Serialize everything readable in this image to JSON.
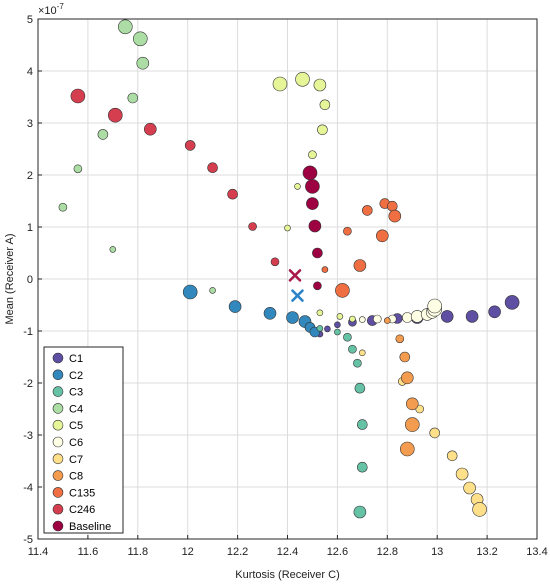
{
  "chart_data": {
    "type": "scatter",
    "title": "",
    "xlabel": "Kurtosis (Receiver C)",
    "ylabel": "Mean (Receiver A)",
    "y_exponent_label": "×10",
    "y_exponent_power": "-7",
    "xlim": [
      11.4,
      13.4
    ],
    "ylim": [
      -5,
      5
    ],
    "x_ticks": [
      "11.4",
      "11.6",
      "11.8",
      "12",
      "12.2",
      "12.4",
      "12.6",
      "12.8",
      "13",
      "13.2",
      "13.4"
    ],
    "y_ticks": [
      "-5",
      "-4",
      "-3",
      "-2",
      "-1",
      "0",
      "1",
      "2",
      "3",
      "4",
      "5"
    ],
    "grid": true,
    "legend_position": "bottom-left",
    "series": [
      {
        "name": "C1",
        "color": "#5e4fa2",
        "points": [
          [
            12.53,
            -1.06
          ],
          [
            12.56,
            -0.96
          ],
          [
            12.6,
            -0.88
          ],
          [
            12.66,
            -0.83
          ],
          [
            12.74,
            -0.8
          ],
          [
            12.84,
            -0.76
          ],
          [
            12.92,
            -0.74
          ],
          [
            13.04,
            -0.72
          ],
          [
            13.14,
            -0.72
          ],
          [
            13.23,
            -0.63
          ],
          [
            13.3,
            -0.45
          ]
        ],
        "sizes": [
          3,
          3,
          3,
          4,
          5,
          5,
          6,
          6,
          6,
          6,
          7
        ]
      },
      {
        "name": "C2",
        "color": "#3288bd",
        "points": [
          [
            12.01,
            -0.25
          ],
          [
            12.19,
            -0.53
          ],
          [
            12.33,
            -0.66
          ],
          [
            12.42,
            -0.74
          ],
          [
            12.47,
            -0.82
          ],
          [
            12.49,
            -0.93
          ],
          [
            12.51,
            -1.02
          ]
        ],
        "sizes": [
          7,
          6,
          6,
          6,
          6,
          5,
          5
        ]
      },
      {
        "name": "C3",
        "color": "#66c2a5",
        "points": [
          [
            12.53,
            -0.95
          ],
          [
            12.6,
            -1.02
          ],
          [
            12.64,
            -1.12
          ],
          [
            12.66,
            -1.35
          ],
          [
            12.68,
            -1.62
          ],
          [
            12.69,
            -2.1
          ],
          [
            12.7,
            -2.8
          ],
          [
            12.7,
            -3.62
          ],
          [
            12.69,
            -4.48
          ]
        ],
        "sizes": [
          3,
          3,
          4,
          4,
          4,
          5,
          5,
          5,
          6
        ]
      },
      {
        "name": "C4",
        "color": "#abdda4",
        "points": [
          [
            11.75,
            4.85
          ],
          [
            11.81,
            4.62
          ],
          [
            11.82,
            4.15
          ],
          [
            11.78,
            3.48
          ],
          [
            11.66,
            2.78
          ],
          [
            11.56,
            2.12
          ],
          [
            11.5,
            1.38
          ],
          [
            11.7,
            0.57
          ],
          [
            12.1,
            -0.22
          ]
        ],
        "sizes": [
          7,
          7,
          6,
          5,
          5,
          4,
          4,
          3,
          3
        ]
      },
      {
        "name": "C5",
        "color": "#e6f598",
        "points": [
          [
            12.37,
            3.75
          ],
          [
            12.46,
            3.84
          ],
          [
            12.53,
            3.73
          ],
          [
            12.55,
            3.35
          ],
          [
            12.54,
            2.87
          ],
          [
            12.5,
            2.39
          ],
          [
            12.44,
            1.78
          ],
          [
            12.4,
            0.98
          ],
          [
            12.53,
            -0.65
          ],
          [
            12.61,
            -0.72
          ],
          [
            12.66,
            -0.77
          ]
        ],
        "sizes": [
          7,
          7,
          6,
          5,
          5,
          4,
          3,
          3,
          3,
          3,
          3
        ]
      },
      {
        "name": "C6",
        "color": "#fefee4",
        "points": [
          [
            12.7,
            -0.78
          ],
          [
            12.76,
            -0.77
          ],
          [
            12.82,
            -0.77
          ],
          [
            12.88,
            -0.74
          ],
          [
            12.92,
            -0.72
          ],
          [
            12.96,
            -0.68
          ],
          [
            12.98,
            -0.64
          ],
          [
            12.99,
            -0.58
          ],
          [
            12.99,
            -0.52
          ]
        ],
        "sizes": [
          3,
          4,
          4,
          5,
          6,
          6,
          6,
          7,
          7
        ]
      },
      {
        "name": "C7",
        "color": "#fee08b",
        "points": [
          [
            12.7,
            -1.42
          ],
          [
            12.86,
            -1.97
          ],
          [
            12.93,
            -2.5
          ],
          [
            12.99,
            -2.96
          ],
          [
            13.06,
            -3.4
          ],
          [
            13.1,
            -3.75
          ],
          [
            13.13,
            -4.02
          ],
          [
            13.16,
            -4.24
          ],
          [
            13.17,
            -4.43
          ]
        ],
        "sizes": [
          3,
          4,
          4,
          5,
          5,
          6,
          6,
          6,
          7
        ]
      },
      {
        "name": "C8",
        "color": "#f39c50",
        "points": [
          [
            12.8,
            -0.8
          ],
          [
            12.85,
            -1.15
          ],
          [
            12.87,
            -1.5
          ],
          [
            12.88,
            -1.9
          ],
          [
            12.9,
            -2.4
          ],
          [
            12.9,
            -2.8
          ],
          [
            12.88,
            -3.27
          ]
        ],
        "sizes": [
          3,
          4,
          5,
          6,
          6,
          7,
          7
        ]
      },
      {
        "name": "C135",
        "color": "#f06f42",
        "points": [
          [
            12.55,
            0.18
          ],
          [
            12.62,
            -0.22
          ],
          [
            12.64,
            0.92
          ],
          [
            12.69,
            0.26
          ],
          [
            12.72,
            1.32
          ],
          [
            12.78,
            0.83
          ],
          [
            12.79,
            1.45
          ],
          [
            12.82,
            1.4
          ],
          [
            12.83,
            1.21
          ]
        ],
        "sizes": [
          3,
          7,
          4,
          6,
          5,
          6,
          5,
          5,
          6
        ]
      },
      {
        "name": "C246",
        "color": "#d53e4f",
        "points": [
          [
            11.56,
            3.52
          ],
          [
            11.71,
            3.15
          ],
          [
            11.85,
            2.88
          ],
          [
            12.01,
            2.57
          ],
          [
            12.1,
            2.14
          ],
          [
            12.18,
            1.63
          ],
          [
            12.26,
            1.01
          ],
          [
            12.35,
            0.33
          ]
        ],
        "sizes": [
          7,
          7,
          6,
          5,
          5,
          5,
          4,
          4
        ]
      },
      {
        "name": "Baseline",
        "color": "#9e0142",
        "points": [
          [
            12.49,
            2.04
          ],
          [
            12.5,
            1.78
          ],
          [
            12.5,
            1.45
          ],
          [
            12.51,
            1.02
          ],
          [
            12.52,
            0.5
          ],
          [
            12.52,
            -0.13
          ]
        ],
        "sizes": [
          7,
          7,
          6,
          6,
          5,
          4
        ]
      }
    ],
    "markers": [
      {
        "label": "×",
        "color": "#a8194c",
        "x": 12.43,
        "y": 0.07
      },
      {
        "label": "×",
        "color": "#2b83c7",
        "x": 12.44,
        "y": -0.32
      }
    ]
  }
}
